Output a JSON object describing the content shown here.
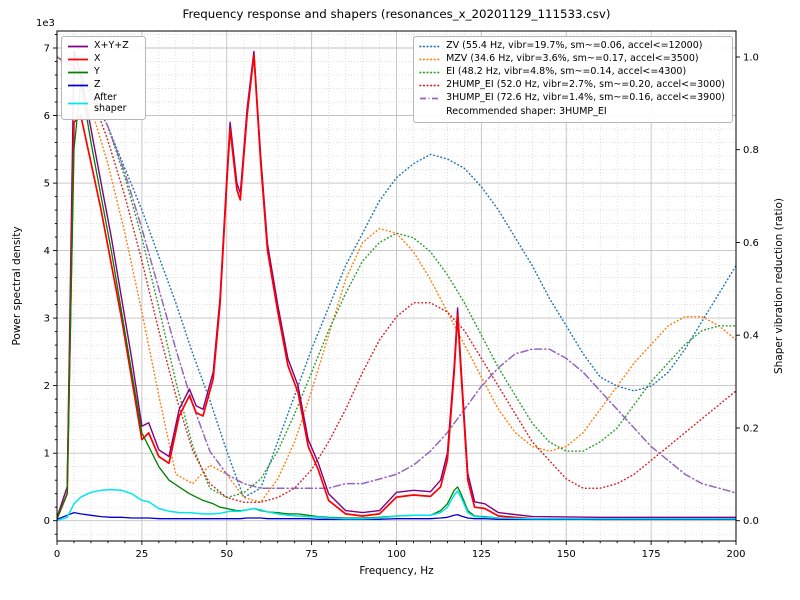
{
  "figure": {
    "title": "Frequency response and shapers (resonances_x_20201129_111533.csv)",
    "xlabel": "Frequency, Hz",
    "ylabel_left": "Power spectral density",
    "ylabel_right": "Shaper vibration reduction (ratio)",
    "offset_label": "1e3",
    "recommendation": "Recommended shaper: 3HUMP_EI"
  },
  "chart_data": {
    "type": "line",
    "title": "Frequency response and shapers (resonances_x_20201129_111533.csv)",
    "xlabel": "Frequency, Hz",
    "ylabel_left": "Power spectral density",
    "ylabel_right": "Shaper vibration reduction (ratio)",
    "x_range": [
      0,
      200
    ],
    "y_left_range_1e3": [
      0,
      7
    ],
    "y_right_range": [
      0,
      1
    ],
    "x_ticks": [
      0,
      25,
      50,
      75,
      100,
      125,
      150,
      175,
      200
    ],
    "y_left_ticks": [
      0,
      1,
      2,
      3,
      4,
      5,
      6,
      7
    ],
    "y_left_multiplier": "1e3",
    "y_right_ticks": [
      0,
      0.2,
      0.4,
      0.6,
      0.8,
      1.0
    ],
    "grid": "major+minor",
    "legend_left_position": "upper left",
    "legend_right_position": "upper right",
    "psd_freqs": [
      0,
      3,
      5,
      7,
      10,
      13,
      16,
      19,
      22,
      25,
      27,
      30,
      33,
      36,
      39,
      41,
      43,
      46,
      48,
      50,
      51,
      53,
      54,
      56,
      58,
      60,
      62,
      65,
      68,
      71,
      74,
      77,
      80,
      85,
      90,
      95,
      100,
      105,
      110,
      113,
      115,
      117,
      118,
      119,
      121,
      123,
      126,
      130,
      140,
      160,
      200
    ],
    "psd_series": [
      {
        "name": "psd-xyz",
        "label": "X+Y+Z",
        "color": "#800080",
        "width": 1.4,
        "values": [
          0.05,
          0.5,
          6.95,
          6.6,
          5.8,
          5.0,
          4.2,
          3.3,
          2.4,
          1.4,
          1.45,
          1.05,
          0.95,
          1.65,
          1.95,
          1.7,
          1.65,
          2.2,
          3.3,
          5.1,
          5.9,
          5.0,
          4.85,
          6.1,
          6.95,
          5.4,
          4.1,
          3.2,
          2.4,
          2.0,
          1.2,
          0.85,
          0.4,
          0.15,
          0.12,
          0.15,
          0.42,
          0.45,
          0.43,
          0.6,
          1.0,
          2.3,
          3.15,
          2.3,
          0.7,
          0.28,
          0.25,
          0.12,
          0.06,
          0.05,
          0.05
        ]
      },
      {
        "name": "psd-x",
        "label": "X",
        "color": "#ff0000",
        "width": 1.7,
        "values": [
          0.03,
          0.4,
          5.9,
          6.0,
          5.3,
          4.6,
          3.8,
          3.0,
          2.1,
          1.2,
          1.3,
          0.95,
          0.85,
          1.55,
          1.85,
          1.6,
          1.55,
          2.1,
          3.2,
          5.0,
          5.8,
          4.9,
          4.75,
          6.0,
          6.9,
          5.3,
          4.0,
          3.1,
          2.3,
          1.9,
          1.1,
          0.75,
          0.3,
          0.1,
          0.07,
          0.1,
          0.35,
          0.38,
          0.36,
          0.5,
          0.9,
          2.2,
          3.05,
          2.2,
          0.6,
          0.2,
          0.18,
          0.07,
          0.03,
          0.02,
          0.02
        ]
      },
      {
        "name": "psd-y",
        "label": "Y",
        "color": "#008000",
        "width": 1.3,
        "values": [
          0.03,
          0.4,
          5.5,
          6.5,
          5.6,
          4.8,
          4.0,
          3.1,
          2.2,
          1.3,
          1.1,
          0.8,
          0.6,
          0.5,
          0.4,
          0.35,
          0.3,
          0.25,
          0.2,
          0.18,
          0.17,
          0.15,
          0.15,
          0.16,
          0.18,
          0.15,
          0.13,
          0.12,
          0.1,
          0.1,
          0.08,
          0.06,
          0.05,
          0.04,
          0.04,
          0.05,
          0.07,
          0.08,
          0.08,
          0.15,
          0.25,
          0.45,
          0.5,
          0.4,
          0.15,
          0.07,
          0.06,
          0.04,
          0.03,
          0.02,
          0.02
        ]
      },
      {
        "name": "psd-z",
        "label": "Z",
        "color": "#0000cc",
        "width": 1.3,
        "values": [
          0.02,
          0.08,
          0.12,
          0.1,
          0.08,
          0.06,
          0.05,
          0.05,
          0.04,
          0.04,
          0.04,
          0.03,
          0.03,
          0.03,
          0.03,
          0.03,
          0.03,
          0.03,
          0.03,
          0.03,
          0.03,
          0.03,
          0.03,
          0.04,
          0.04,
          0.04,
          0.03,
          0.03,
          0.03,
          0.03,
          0.03,
          0.02,
          0.02,
          0.02,
          0.02,
          0.02,
          0.03,
          0.03,
          0.03,
          0.04,
          0.05,
          0.08,
          0.09,
          0.07,
          0.04,
          0.03,
          0.03,
          0.02,
          0.02,
          0.02,
          0.02
        ]
      },
      {
        "name": "psd-after-shaper",
        "label": "After shaper",
        "color": "#00e5ee",
        "width": 1.5,
        "values": [
          0.0,
          0.05,
          0.25,
          0.35,
          0.42,
          0.45,
          0.46,
          0.45,
          0.4,
          0.3,
          0.28,
          0.18,
          0.14,
          0.12,
          0.12,
          0.11,
          0.1,
          0.1,
          0.11,
          0.13,
          0.14,
          0.14,
          0.14,
          0.16,
          0.18,
          0.16,
          0.13,
          0.1,
          0.08,
          0.07,
          0.06,
          0.05,
          0.04,
          0.03,
          0.03,
          0.04,
          0.07,
          0.08,
          0.08,
          0.12,
          0.2,
          0.38,
          0.44,
          0.35,
          0.12,
          0.06,
          0.05,
          0.04,
          0.03,
          0.03,
          0.03
        ]
      }
    ],
    "shaper_freqs": [
      0,
      5,
      10,
      15,
      20,
      25,
      30,
      35,
      40,
      45,
      50,
      55,
      60,
      65,
      70,
      75,
      80,
      85,
      90,
      95,
      100,
      105,
      110,
      115,
      120,
      125,
      130,
      135,
      140,
      145,
      150,
      155,
      160,
      165,
      170,
      175,
      180,
      185,
      190,
      195,
      200
    ],
    "shaper_series": [
      {
        "name": "shaper-zv",
        "label": "ZV (55.4 Hz, vibr=19.7%, sm~=0.06, accel<=12000)",
        "color": "#1f77b4",
        "style": "dotted",
        "values": [
          1.0,
          0.98,
          0.92,
          0.85,
          0.76,
          0.67,
          0.57,
          0.47,
          0.36,
          0.26,
          0.15,
          0.05,
          0.07,
          0.17,
          0.27,
          0.37,
          0.46,
          0.55,
          0.62,
          0.69,
          0.74,
          0.77,
          0.79,
          0.78,
          0.76,
          0.72,
          0.67,
          0.61,
          0.55,
          0.48,
          0.42,
          0.36,
          0.31,
          0.29,
          0.28,
          0.29,
          0.32,
          0.37,
          0.43,
          0.49,
          0.55
        ]
      },
      {
        "name": "shaper-mzv",
        "label": "MZV (34.6 Hz, vibr=3.6%, sm~=0.17, accel<=3500)",
        "color": "#ff7f0e",
        "style": "dotted",
        "values": [
          1.0,
          0.97,
          0.89,
          0.77,
          0.62,
          0.45,
          0.27,
          0.1,
          0.08,
          0.12,
          0.1,
          0.05,
          0.04,
          0.09,
          0.17,
          0.28,
          0.4,
          0.52,
          0.6,
          0.63,
          0.62,
          0.58,
          0.52,
          0.45,
          0.38,
          0.31,
          0.24,
          0.19,
          0.16,
          0.15,
          0.16,
          0.19,
          0.24,
          0.29,
          0.34,
          0.38,
          0.42,
          0.44,
          0.44,
          0.42,
          0.39
        ]
      },
      {
        "name": "shaper-ei",
        "label": "EI (48.2 Hz, vibr=4.8%, sm~=0.14, accel<=4300)",
        "color": "#2ca02c",
        "style": "dotted",
        "values": [
          1.0,
          0.98,
          0.93,
          0.85,
          0.74,
          0.61,
          0.46,
          0.3,
          0.16,
          0.07,
          0.05,
          0.06,
          0.09,
          0.15,
          0.23,
          0.32,
          0.41,
          0.49,
          0.56,
          0.6,
          0.62,
          0.61,
          0.58,
          0.53,
          0.47,
          0.4,
          0.33,
          0.27,
          0.21,
          0.17,
          0.15,
          0.15,
          0.17,
          0.2,
          0.25,
          0.3,
          0.34,
          0.38,
          0.41,
          0.42,
          0.42
        ]
      },
      {
        "name": "shaper-2hump-ei",
        "label": "2HUMP_EI (52.0 Hz, vibr=2.7%, sm~=0.20, accel<=3000)",
        "color": "#d62728",
        "style": "dotted",
        "values": [
          1.0,
          0.98,
          0.92,
          0.82,
          0.7,
          0.56,
          0.41,
          0.27,
          0.15,
          0.08,
          0.05,
          0.04,
          0.04,
          0.05,
          0.07,
          0.11,
          0.17,
          0.24,
          0.32,
          0.39,
          0.44,
          0.47,
          0.47,
          0.45,
          0.41,
          0.35,
          0.29,
          0.23,
          0.17,
          0.13,
          0.09,
          0.07,
          0.07,
          0.08,
          0.1,
          0.13,
          0.16,
          0.19,
          0.22,
          0.25,
          0.28
        ]
      },
      {
        "name": "shaper-3hump-ei",
        "label": "3HUMP_EI (72.6 Hz, vibr=1.4%, sm~=0.16, accel<=3900)",
        "color": "#9467bd",
        "style": "dashdot",
        "values": [
          1.0,
          0.98,
          0.93,
          0.85,
          0.75,
          0.63,
          0.5,
          0.37,
          0.25,
          0.15,
          0.1,
          0.08,
          0.07,
          0.07,
          0.07,
          0.07,
          0.07,
          0.08,
          0.08,
          0.09,
          0.1,
          0.12,
          0.15,
          0.19,
          0.24,
          0.29,
          0.33,
          0.36,
          0.37,
          0.37,
          0.35,
          0.32,
          0.28,
          0.24,
          0.2,
          0.16,
          0.13,
          0.1,
          0.08,
          0.07,
          0.06
        ]
      }
    ]
  }
}
